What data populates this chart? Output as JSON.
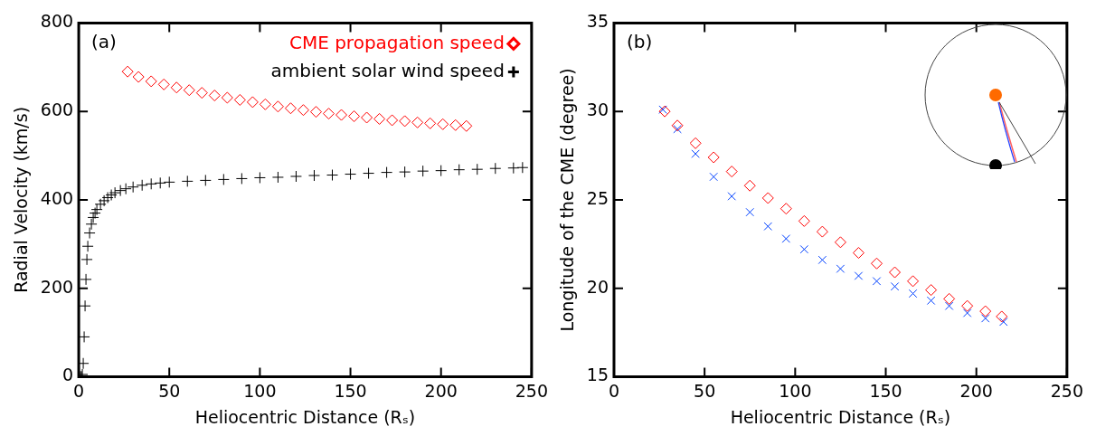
{
  "chart_data": [
    {
      "type": "scatter",
      "xlabel": "Heliocentric Distance (Rₛ)",
      "ylabel": "Radial Velocity (km/s)",
      "xlim": [
        0,
        250
      ],
      "xticks": [
        0,
        50,
        100,
        150,
        200,
        250
      ],
      "ylim": [
        0,
        800
      ],
      "yticks": [
        0,
        200,
        400,
        600,
        800
      ],
      "grid": false,
      "legend": "top right",
      "annotations": [
        "(a)"
      ],
      "series": [
        {
          "name": "CME propagation speed",
          "color": "#ff0000",
          "marker": "diamond",
          "x": [
            27,
            33,
            40,
            47,
            54,
            61,
            68,
            75,
            82,
            89,
            96,
            103,
            110,
            117,
            124,
            131,
            138,
            145,
            152,
            159,
            166,
            173,
            180,
            187,
            194,
            201,
            208,
            214
          ],
          "values": [
            690,
            678,
            668,
            661,
            654,
            648,
            642,
            636,
            631,
            626,
            621,
            616,
            611,
            607,
            603,
            599,
            595,
            592,
            589,
            586,
            583,
            580,
            578,
            575,
            573,
            571,
            569,
            567
          ]
        },
        {
          "name": "ambient solar wind speed",
          "color": "#000000",
          "marker": "cross",
          "x": [
            1,
            1.5,
            2,
            2.5,
            3,
            3.5,
            4,
            4.5,
            5,
            6,
            7,
            8,
            9,
            10,
            12,
            14,
            16,
            18,
            20,
            23,
            26,
            30,
            35,
            40,
            45,
            50,
            60,
            70,
            80,
            90,
            100,
            110,
            120,
            130,
            140,
            150,
            160,
            170,
            180,
            190,
            200,
            210,
            220,
            230,
            240,
            245
          ],
          "values": [
            0,
            0,
            5,
            30,
            90,
            160,
            220,
            265,
            295,
            325,
            345,
            360,
            370,
            378,
            390,
            398,
            405,
            411,
            416,
            421,
            425,
            429,
            433,
            436,
            438,
            440,
            442,
            444,
            446,
            448,
            450,
            451,
            453,
            455,
            456,
            458,
            460,
            462,
            463,
            465,
            466,
            468,
            469,
            471,
            472,
            473
          ]
        }
      ]
    },
    {
      "type": "scatter",
      "xlabel": "Heliocentric Distance (Rₛ)",
      "ylabel": "Longitude of the CME (degree)",
      "xlim": [
        0,
        250
      ],
      "xticks": [
        0,
        50,
        100,
        150,
        200,
        250
      ],
      "ylim": [
        15,
        35
      ],
      "yticks": [
        15,
        20,
        25,
        30,
        35
      ],
      "grid": false,
      "annotations": [
        "(b)"
      ],
      "series": [
        {
          "color": "#ff0000",
          "marker": "diamond",
          "x": [
            28,
            35,
            45,
            55,
            65,
            75,
            85,
            95,
            105,
            115,
            125,
            135,
            145,
            155,
            165,
            175,
            185,
            195,
            205,
            214
          ],
          "values": [
            30,
            29.2,
            28.2,
            27.4,
            26.6,
            25.8,
            25.1,
            24.5,
            23.8,
            23.2,
            22.6,
            22.0,
            21.4,
            20.9,
            20.4,
            19.9,
            19.4,
            19.0,
            18.7,
            18.4
          ]
        },
        {
          "color": "#0040ff",
          "marker": "x",
          "x": [
            27,
            35,
            45,
            55,
            65,
            75,
            85,
            95,
            105,
            115,
            125,
            135,
            145,
            155,
            165,
            175,
            185,
            195,
            205,
            215
          ],
          "values": [
            30.1,
            29.0,
            27.6,
            26.3,
            25.2,
            24.3,
            23.5,
            22.8,
            22.2,
            21.6,
            21.1,
            20.7,
            20.4,
            20.1,
            19.7,
            19.3,
            19.0,
            18.6,
            18.3,
            18.1
          ]
        }
      ]
    }
  ]
}
